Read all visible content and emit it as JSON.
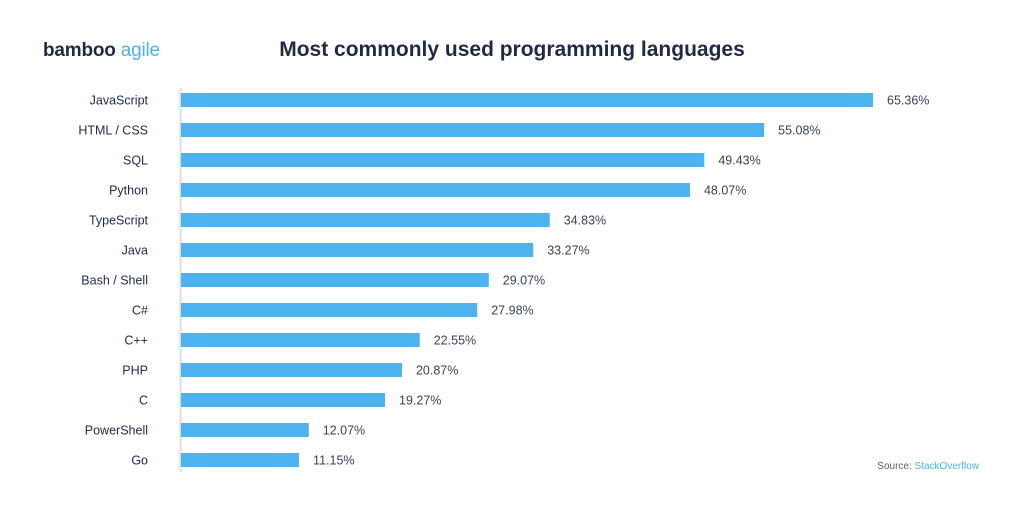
{
  "logo": {
    "part1": "bamboo",
    "part2": "agile"
  },
  "source": {
    "label": "Source:",
    "link": "StackOverflow"
  },
  "colors": {
    "bar": "#4cb3ef",
    "text": "#1f2b44",
    "axis": "#dcdfe8"
  },
  "chart_data": {
    "type": "bar",
    "orientation": "horizontal",
    "title": "Most commonly used programming languages",
    "categories": [
      "JavaScript",
      "HTML / CSS",
      "SQL",
      "Python",
      "TypeScript",
      "Java",
      "Bash / Shell",
      "C#",
      "C++",
      "PHP",
      "C",
      "PowerShell",
      "Go"
    ],
    "values": [
      65.36,
      55.08,
      49.43,
      48.07,
      34.83,
      33.27,
      29.07,
      27.98,
      22.55,
      20.87,
      19.27,
      12.07,
      11.15
    ],
    "labels": [
      "65.36%",
      "55.08%",
      "49.43%",
      "48.07%",
      "34.83%",
      "33.27%",
      "29.07%",
      "27.98%",
      "22.55%",
      "20.87%",
      "19.27%",
      "12.07%",
      "11.15%"
    ],
    "xlim": [
      0,
      65.36
    ],
    "grid": false,
    "legend": "none"
  }
}
